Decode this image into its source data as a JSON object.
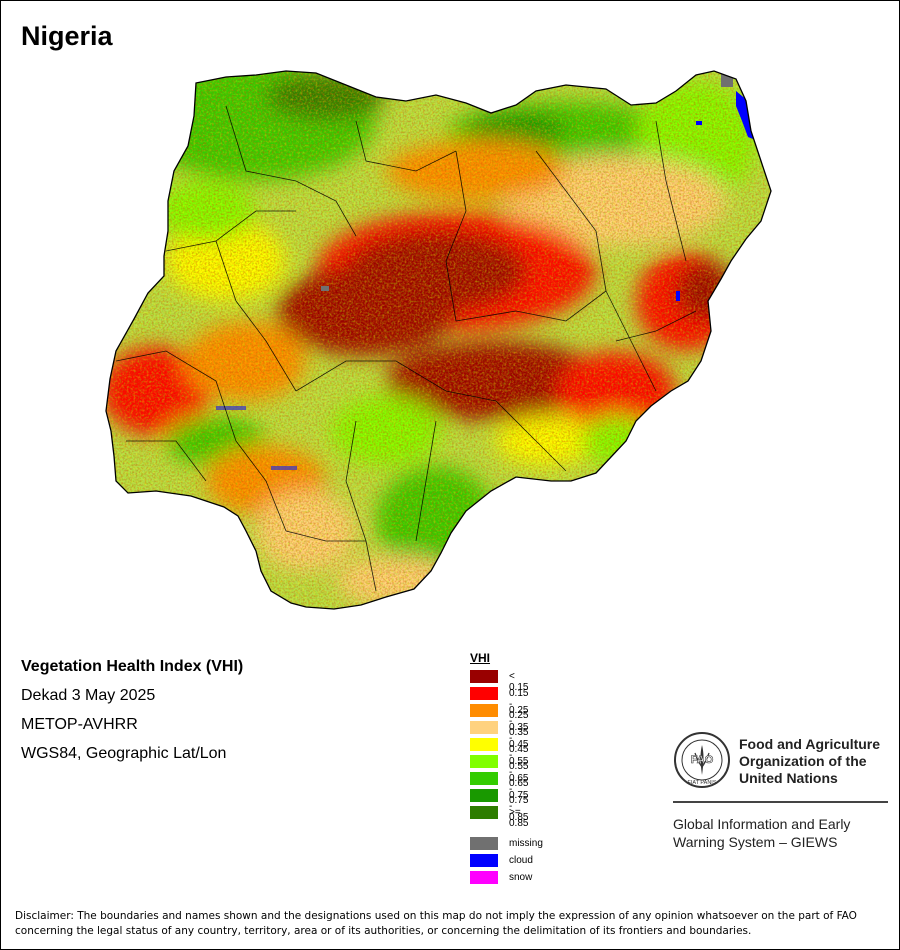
{
  "map": {
    "title": "Nigeria"
  },
  "info": {
    "index_name": "Vegetation Health Index (VHI)",
    "period": "Dekad 3 May 2025",
    "sensor": "METOP-AVHRR",
    "projection": "WGS84, Geographic Lat/Lon"
  },
  "legend": {
    "title": "VHI",
    "classes": [
      {
        "label": "< 0.15",
        "color": "#990000"
      },
      {
        "label": "0.15 - 0.25",
        "color": "#ff0000"
      },
      {
        "label": "0.25 - 0.35",
        "color": "#ff8c00"
      },
      {
        "label": "0.35 - 0.45",
        "color": "#ffd27f"
      },
      {
        "label": "0.45 - 0.55",
        "color": "#ffff00"
      },
      {
        "label": "0.55 - 0.65",
        "color": "#80ff00"
      },
      {
        "label": "0.65 - 0.75",
        "color": "#33cc00"
      },
      {
        "label": "0.75 - 0.85",
        "color": "#199900"
      },
      {
        "label": ">= 0.85",
        "color": "#2e7d00"
      }
    ],
    "special": [
      {
        "label": "missing",
        "color": "#707070"
      },
      {
        "label": "cloud",
        "color": "#0000ff"
      },
      {
        "label": "snow",
        "color": "#ff00ff"
      }
    ]
  },
  "organization": {
    "logo_text": "FAO",
    "logo_motto": "FIAT PANIS",
    "name": "Food and Agriculture Organization of the United Nations",
    "system": "Global Information and Early Warning System – GIEWS"
  },
  "disclaimer": "Disclaimer: The boundaries and names shown and the designations used on this map do not imply the expression of any opinion whatsoever on the part of FAO concerning the legal status of any country, territory, area or of its authorities, or concerning the delimitation of its frontiers and boundaries."
}
